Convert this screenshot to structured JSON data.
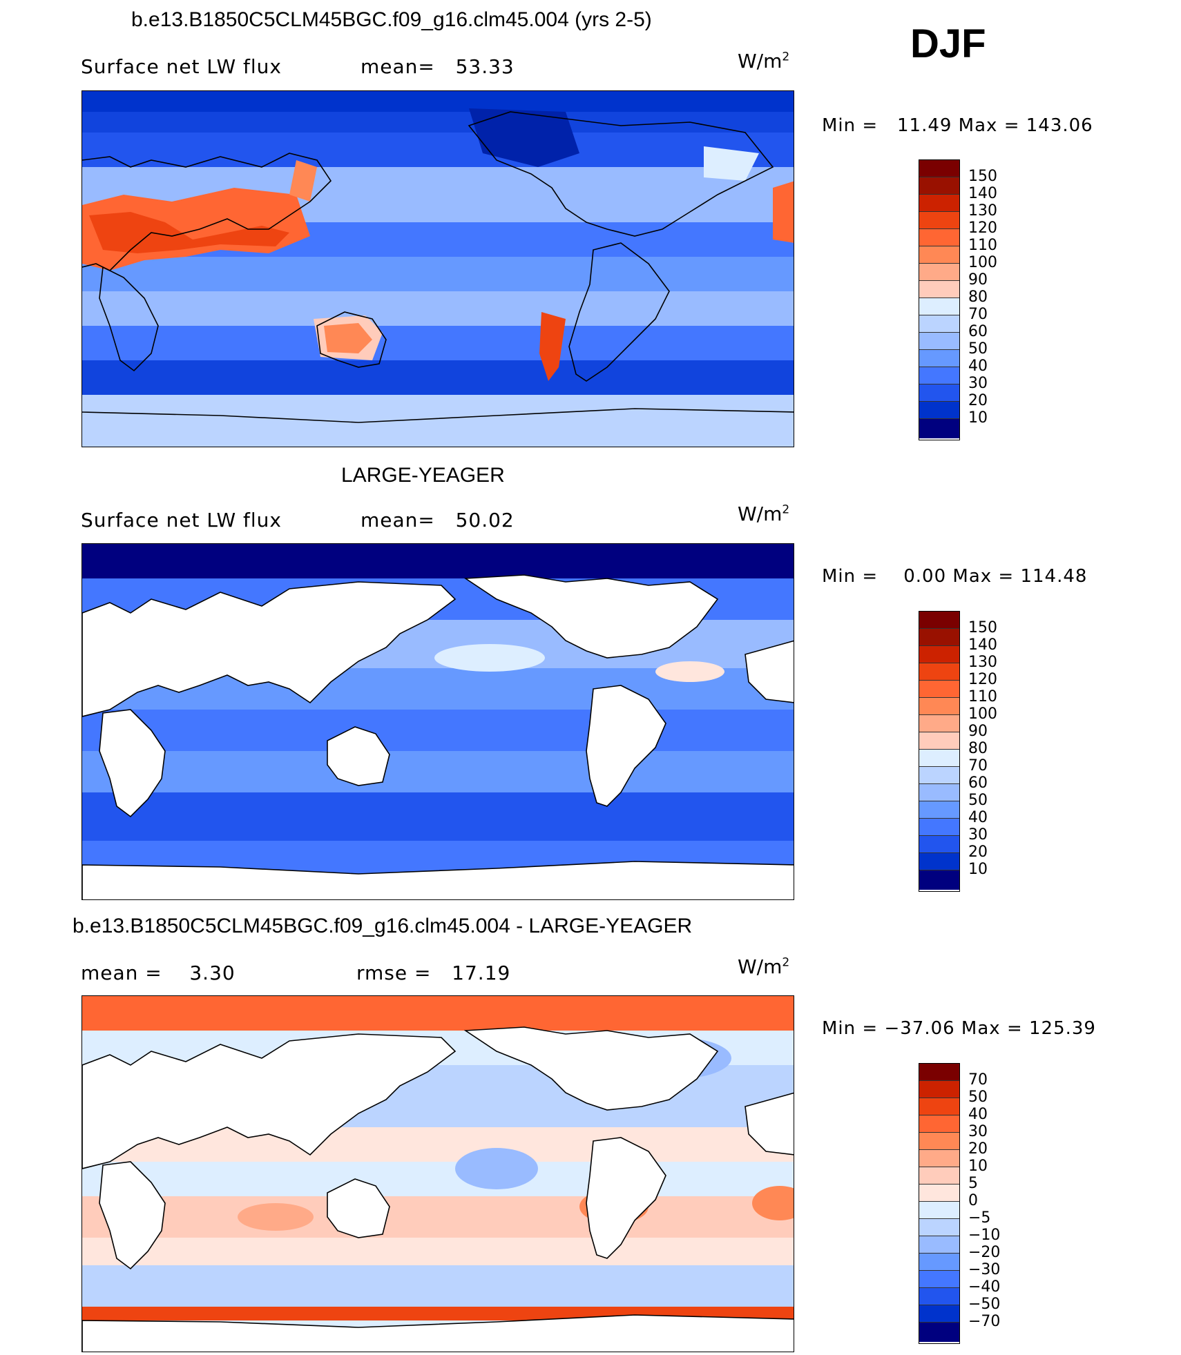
{
  "season": "DJF",
  "colors": {
    "abs_scale": [
      "#00007f",
      "#0022aa",
      "#0033cc",
      "#1144dd",
      "#2255ee",
      "#4477ff",
      "#6699ff",
      "#99bbff",
      "#bbd4ff",
      "#ddeeff",
      "#ffe6dd",
      "#ffccbb",
      "#ffaa88",
      "#ff8855",
      "#ff6633",
      "#ee4411",
      "#cc2200",
      "#991100",
      "#7a0000"
    ],
    "diff_scale": [
      "#00007f",
      "#0022aa",
      "#0033cc",
      "#2255ee",
      "#4477ff",
      "#6699ff",
      "#99bbff",
      "#bbd4ff",
      "#ddeeff",
      "#ffe6dd",
      "#ffccbb",
      "#ffaa88",
      "#ff8855",
      "#ff6633",
      "#ee4411",
      "#cc2200",
      "#7a0000"
    ],
    "land": "#ffffff",
    "coast": "#000000"
  },
  "panels": [
    {
      "title": "b.e13.B1850C5CLM45BGC.f09_g16.clm45.004 (yrs 2-5)",
      "left_label": "Surface net LW flux",
      "center_label": "mean=   53.33",
      "units": "W/m",
      "units_sup": "2",
      "minmax": "Min =   11.49 Max = 143.06",
      "ticks": [
        "150",
        "140",
        "130",
        "120",
        "110",
        "100",
        "90",
        "80",
        "70",
        "60",
        "50",
        "40",
        "30",
        "20",
        "10"
      ],
      "land_filled": true
    },
    {
      "title": "LARGE-YEAGER",
      "left_label": "Surface net LW flux",
      "center_label": "mean=   50.02",
      "units": "W/m",
      "units_sup": "2",
      "minmax": "Min =    0.00 Max = 114.48",
      "ticks": [
        "150",
        "140",
        "130",
        "120",
        "110",
        "100",
        "90",
        "80",
        "70",
        "60",
        "50",
        "40",
        "30",
        "20",
        "10"
      ],
      "land_filled": false
    },
    {
      "title": "b.e13.B1850C5CLM45BGC.f09_g16.clm45.004 - LARGE-YEAGER",
      "left_label": "mean =    3.30",
      "center_label": "rmse =   17.19",
      "units": "W/m",
      "units_sup": "2",
      "minmax": "Min = −37.06 Max = 125.39",
      "ticks": [
        "70",
        "50",
        "40",
        "30",
        "20",
        "10",
        "5",
        "0",
        "−5",
        "−10",
        "−20",
        "−30",
        "−40",
        "−50",
        "−70"
      ],
      "land_filled": false
    }
  ]
}
